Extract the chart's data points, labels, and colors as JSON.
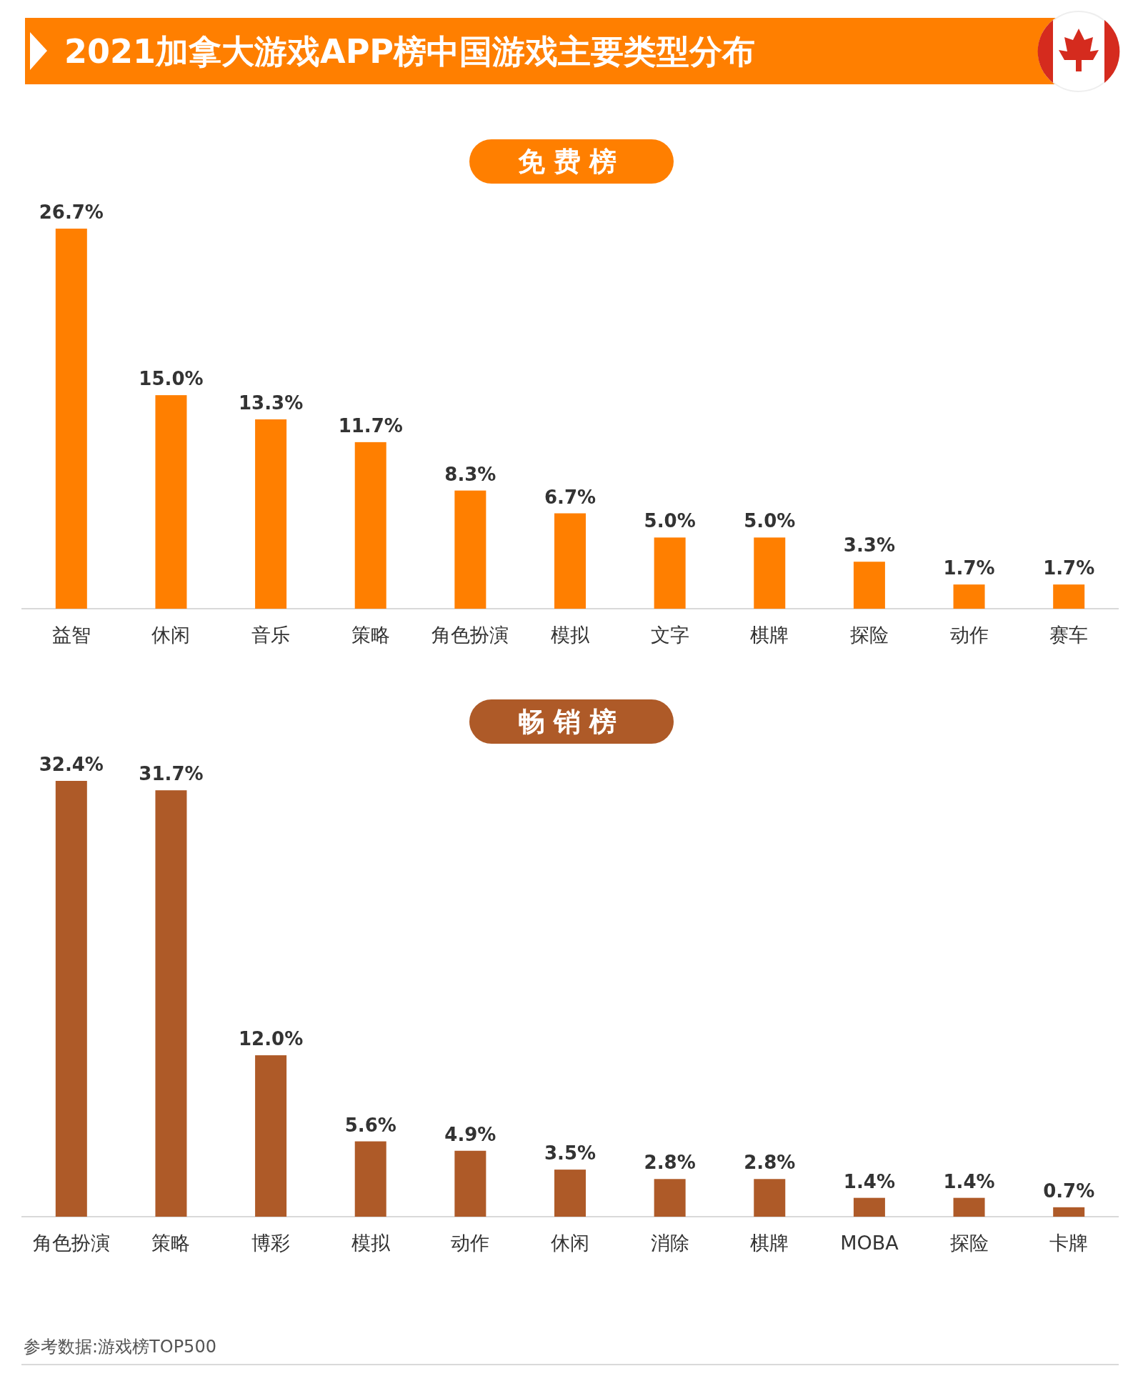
{
  "chart_data": [
    {
      "type": "bar",
      "title": "2021加拿大游戏APP榜中国游戏主要类型分布",
      "subtitle": "免费榜",
      "categories": [
        "益智",
        "休闲",
        "音乐",
        "策略",
        "角色扮演",
        "模拟",
        "文字",
        "棋牌",
        "探险",
        "动作",
        "赛车"
      ],
      "series": [
        {
          "color": "#ff7f00",
          "values": [
            26.7,
            15.0,
            13.3,
            11.7,
            8.3,
            6.7,
            5.0,
            5.0,
            3.3,
            1.7,
            1.7
          ],
          "value_labels": [
            "26.7%",
            "15.0%",
            "13.3%",
            "11.7%",
            "8.3%",
            "6.7%",
            "5.0%",
            "5.0%",
            "3.3%",
            "1.7%",
            "1.7%"
          ]
        }
      ]
    },
    {
      "type": "bar",
      "subtitle": "畅销榜",
      "categories": [
        "角色扮演",
        "策略",
        "博彩",
        "模拟",
        "动作",
        "休闲",
        "消除",
        "棋牌",
        "MOBA",
        "探险",
        "卡牌"
      ],
      "series": [
        {
          "color": "#ae5a28",
          "values": [
            32.4,
            31.7,
            12.0,
            5.6,
            4.9,
            3.5,
            2.8,
            2.8,
            1.4,
            1.4,
            0.7
          ],
          "value_labels": [
            "32.4%",
            "31.7%",
            "12.0%",
            "5.6%",
            "4.9%",
            "3.5%",
            "2.8%",
            "2.8%",
            "1.4%",
            "1.4%",
            "0.7%"
          ]
        }
      ],
      "annotations": [
        "参考数据:游戏榜TOP500"
      ]
    }
  ]
}
